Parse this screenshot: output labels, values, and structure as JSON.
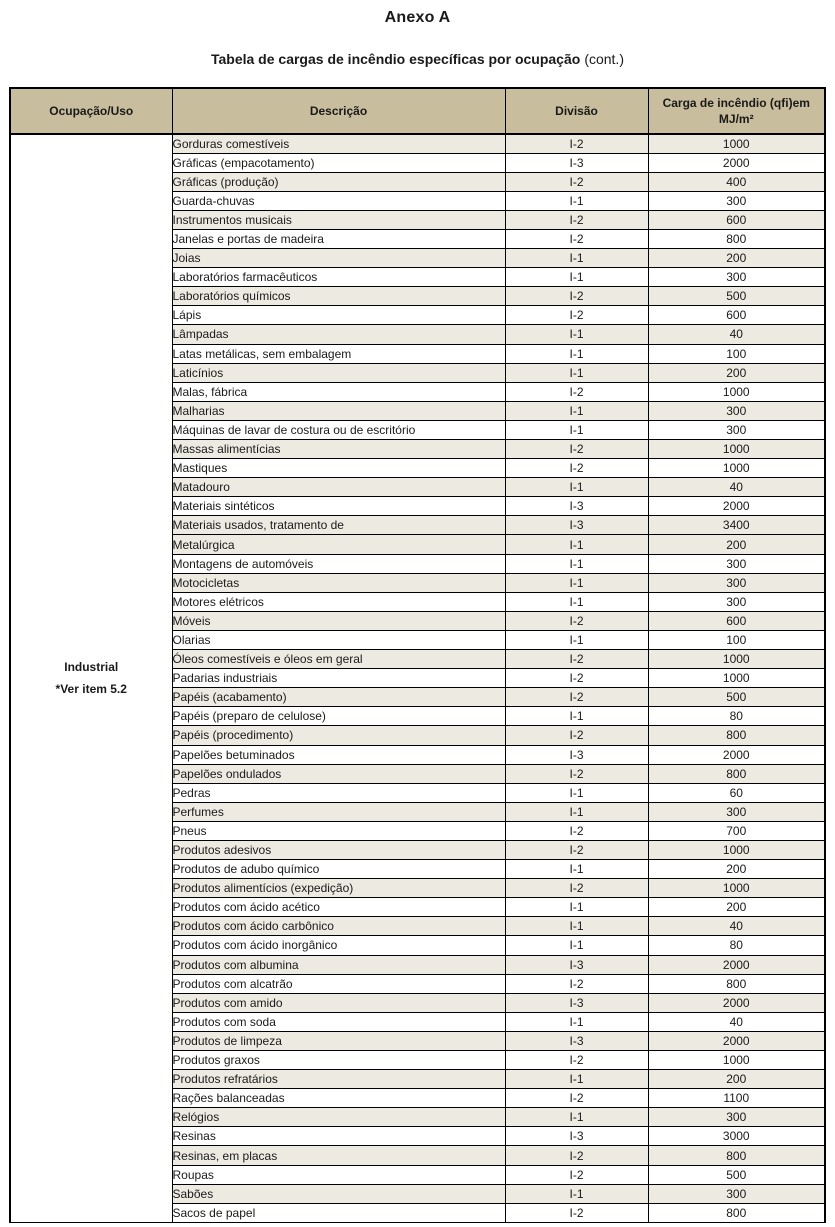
{
  "document": {
    "title": "Anexo A",
    "subtitle": "Tabela de cargas de incêndio específicas por ocupação",
    "subtitle_suffix": "(cont.)"
  },
  "table": {
    "columns": [
      "Ocupação/Uso",
      "Descrição",
      "Divisão",
      "Carga de incêndio (qfi)em MJ/m²"
    ],
    "occupancy_group": {
      "name": "Industrial",
      "note": "*Ver item 5.2"
    },
    "colors": {
      "header_bg": "#c8bd9c",
      "shaded_row_bg": "#edeae1",
      "border": "#000000",
      "text": "#1a1a1a"
    },
    "rows": [
      {
        "descricao": "Gorduras comestíveis",
        "divisao": "I-2",
        "carga": "1000",
        "shaded": true
      },
      {
        "descricao": "Gráficas (empacotamento)",
        "divisao": "I-3",
        "carga": "2000",
        "shaded": false
      },
      {
        "descricao": "Gráficas (produção)",
        "divisao": "I-2",
        "carga": "400",
        "shaded": true
      },
      {
        "descricao": "Guarda-chuvas",
        "divisao": "I-1",
        "carga": "300",
        "shaded": false
      },
      {
        "descricao": "Instrumentos musicais",
        "divisao": "I-2",
        "carga": "600",
        "shaded": true
      },
      {
        "descricao": "Janelas e portas de madeira",
        "divisao": "I-2",
        "carga": "800",
        "shaded": false
      },
      {
        "descricao": "Joias",
        "divisao": "I-1",
        "carga": "200",
        "shaded": true
      },
      {
        "descricao": "Laboratórios farmacêuticos",
        "divisao": "I-1",
        "carga": "300",
        "shaded": false
      },
      {
        "descricao": "Laboratórios químicos",
        "divisao": "I-2",
        "carga": "500",
        "shaded": true
      },
      {
        "descricao": "Lápis",
        "divisao": "I-2",
        "carga": "600",
        "shaded": false
      },
      {
        "descricao": "Lâmpadas",
        "divisao": "I-1",
        "carga": "40",
        "shaded": true
      },
      {
        "descricao": "Latas metálicas, sem embalagem",
        "divisao": "I-1",
        "carga": "100",
        "shaded": false
      },
      {
        "descricao": "Laticínios",
        "divisao": "I-1",
        "carga": "200",
        "shaded": true
      },
      {
        "descricao": "Malas, fábrica",
        "divisao": "I-2",
        "carga": "1000",
        "shaded": false
      },
      {
        "descricao": "Malharias",
        "divisao": "I-1",
        "carga": "300",
        "shaded": true
      },
      {
        "descricao": "Máquinas de lavar de costura ou de escritório",
        "divisao": "I-1",
        "carga": "300",
        "shaded": false
      },
      {
        "descricao": "Massas alimentícias",
        "divisao": "I-2",
        "carga": "1000",
        "shaded": true
      },
      {
        "descricao": "Mastiques",
        "divisao": "I-2",
        "carga": "1000",
        "shaded": false
      },
      {
        "descricao": "Matadouro",
        "divisao": "I-1",
        "carga": "40",
        "shaded": true
      },
      {
        "descricao": "Materiais sintéticos",
        "divisao": "I-3",
        "carga": "2000",
        "shaded": false
      },
      {
        "descricao": "Materiais usados, tratamento de",
        "divisao": "I-3",
        "carga": "3400",
        "shaded": true
      },
      {
        "descricao": "Metalúrgica",
        "divisao": "I-1",
        "carga": "200",
        "shaded": true
      },
      {
        "descricao": "Montagens de automóveis",
        "divisao": "I-1",
        "carga": "300",
        "shaded": false
      },
      {
        "descricao": "Motocicletas",
        "divisao": "I-1",
        "carga": "300",
        "shaded": true
      },
      {
        "descricao": "Motores elétricos",
        "divisao": "I-1",
        "carga": "300",
        "shaded": false
      },
      {
        "descricao": "Móveis",
        "divisao": "I-2",
        "carga": "600",
        "shaded": true
      },
      {
        "descricao": "Olarias",
        "divisao": "I-1",
        "carga": "100",
        "shaded": false
      },
      {
        "descricao": "Óleos comestíveis e óleos em geral",
        "divisao": "I-2",
        "carga": "1000",
        "shaded": true
      },
      {
        "descricao": "Padarias industriais",
        "divisao": "I-2",
        "carga": "1000",
        "shaded": false
      },
      {
        "descricao": "Papéis (acabamento)",
        "divisao": "I-2",
        "carga": "500",
        "shaded": true
      },
      {
        "descricao": "Papéis (preparo de celulose)",
        "divisao": "I-1",
        "carga": "80",
        "shaded": false
      },
      {
        "descricao": "Papéis (procedimento)",
        "divisao": "I-2",
        "carga": "800",
        "shaded": true
      },
      {
        "descricao": "Papelões betuminados",
        "divisao": "I-3",
        "carga": "2000",
        "shaded": false
      },
      {
        "descricao": "Papelões ondulados",
        "divisao": "I-2",
        "carga": "800",
        "shaded": true
      },
      {
        "descricao": "Pedras",
        "divisao": "I-1",
        "carga": "60",
        "shaded": false
      },
      {
        "descricao": "Perfumes",
        "divisao": "I-1",
        "carga": "300",
        "shaded": true
      },
      {
        "descricao": "Pneus",
        "divisao": "I-2",
        "carga": "700",
        "shaded": false
      },
      {
        "descricao": "Produtos adesivos",
        "divisao": "I-2",
        "carga": "1000",
        "shaded": true
      },
      {
        "descricao": "Produtos de adubo químico",
        "divisao": "I-1",
        "carga": "200",
        "shaded": false
      },
      {
        "descricao": "Produtos alimentícios (expedição)",
        "divisao": "I-2",
        "carga": "1000",
        "shaded": true
      },
      {
        "descricao": "Produtos com ácido acético",
        "divisao": "I-1",
        "carga": "200",
        "shaded": false
      },
      {
        "descricao": "Produtos com ácido carbônico",
        "divisao": "I-1",
        "carga": "40",
        "shaded": true
      },
      {
        "descricao": "Produtos com ácido inorgânico",
        "divisao": "I-1",
        "carga": "80",
        "shaded": false
      },
      {
        "descricao": "Produtos com albumina",
        "divisao": "I-3",
        "carga": "2000",
        "shaded": true
      },
      {
        "descricao": "Produtos com alcatrão",
        "divisao": "I-2",
        "carga": "800",
        "shaded": false
      },
      {
        "descricao": "Produtos com amido",
        "divisao": "I-3",
        "carga": "2000",
        "shaded": true
      },
      {
        "descricao": "Produtos com soda",
        "divisao": "I-1",
        "carga": "40",
        "shaded": false
      },
      {
        "descricao": "Produtos de limpeza",
        "divisao": "I-3",
        "carga": "2000",
        "shaded": true
      },
      {
        "descricao": "Produtos graxos",
        "divisao": "I-2",
        "carga": "1000",
        "shaded": false
      },
      {
        "descricao": "Produtos refratários",
        "divisao": "I-1",
        "carga": "200",
        "shaded": true
      },
      {
        "descricao": "Rações balanceadas",
        "divisao": "I-2",
        "carga": "1100",
        "shaded": false
      },
      {
        "descricao": "Relógios",
        "divisao": "I-1",
        "carga": "300",
        "shaded": true
      },
      {
        "descricao": "Resinas",
        "divisao": "I-3",
        "carga": "3000",
        "shaded": false
      },
      {
        "descricao": "Resinas, em placas",
        "divisao": "I-2",
        "carga": "800",
        "shaded": true
      },
      {
        "descricao": "Roupas",
        "divisao": "I-2",
        "carga": "500",
        "shaded": false
      },
      {
        "descricao": "Sabões",
        "divisao": "I-1",
        "carga": "300",
        "shaded": true
      },
      {
        "descricao": "Sacos de papel",
        "divisao": "I-2",
        "carga": "800",
        "shaded": false
      }
    ]
  }
}
